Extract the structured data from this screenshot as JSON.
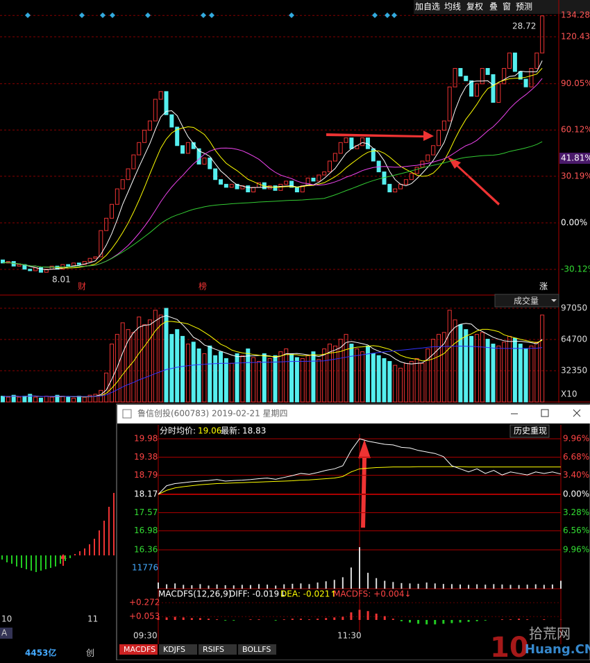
{
  "toolbar": [
    "加自选",
    "均线",
    "复权",
    "叠",
    "窗",
    "预测"
  ],
  "main_chart": {
    "yticks": [
      {
        "value": 134.28,
        "label": "134.28%"
      },
      {
        "value": 120.43,
        "label": "120.43%"
      },
      {
        "value": 90.05,
        "label": "90.05%"
      },
      {
        "value": 60.12,
        "label": "60.12%"
      },
      {
        "value": 30.19,
        "label": "30.19%"
      },
      {
        "value": 0,
        "label": "0.00%"
      },
      {
        "value": -30.12,
        "label": "-30.12%"
      }
    ],
    "current": {
      "value": 41.81,
      "label": "41.81%"
    },
    "price_high": "28.72",
    "price_low": "8.01",
    "markers": [
      "财",
      "榜",
      "涨"
    ],
    "candles": [
      [
        -24,
        -26
      ],
      [
        -26,
        -25
      ],
      [
        -25,
        -28
      ],
      [
        -28,
        -27
      ],
      [
        -27,
        -30
      ],
      [
        -30,
        -31
      ],
      [
        -31,
        -29
      ],
      [
        -29,
        -32
      ],
      [
        -32,
        -30
      ],
      [
        -30,
        -28
      ],
      [
        -28,
        -30
      ],
      [
        -30,
        -27
      ],
      [
        -27,
        -28
      ],
      [
        -28,
        -26
      ],
      [
        -26,
        -27
      ],
      [
        -27,
        -25
      ],
      [
        -25,
        -23
      ],
      [
        -23,
        -22
      ],
      [
        -22,
        -5
      ],
      [
        -5,
        3
      ],
      [
        3,
        12
      ],
      [
        12,
        22
      ],
      [
        22,
        28
      ],
      [
        28,
        35
      ],
      [
        35,
        44
      ],
      [
        44,
        52
      ],
      [
        52,
        60
      ],
      [
        60,
        66
      ],
      [
        66,
        80
      ],
      [
        80,
        85
      ],
      [
        85,
        70
      ],
      [
        70,
        62
      ],
      [
        62,
        50
      ],
      [
        50,
        45
      ],
      [
        45,
        52
      ],
      [
        52,
        48
      ],
      [
        48,
        38
      ],
      [
        38,
        42
      ],
      [
        42,
        35
      ],
      [
        35,
        28
      ],
      [
        28,
        25
      ],
      [
        25,
        23
      ],
      [
        23,
        25
      ],
      [
        25,
        22
      ],
      [
        22,
        24
      ],
      [
        24,
        20
      ],
      [
        20,
        23
      ],
      [
        23,
        26
      ],
      [
        26,
        22
      ],
      [
        22,
        24
      ],
      [
        24,
        21
      ],
      [
        21,
        25
      ],
      [
        25,
        27
      ],
      [
        27,
        23
      ],
      [
        23,
        20
      ],
      [
        20,
        24
      ],
      [
        24,
        29
      ],
      [
        29,
        27
      ],
      [
        27,
        31
      ],
      [
        31,
        33
      ],
      [
        33,
        40
      ],
      [
        40,
        45
      ],
      [
        45,
        52
      ],
      [
        52,
        55
      ],
      [
        55,
        48
      ],
      [
        48,
        50
      ],
      [
        50,
        55
      ],
      [
        55,
        48
      ],
      [
        48,
        40
      ],
      [
        40,
        33
      ],
      [
        33,
        25
      ],
      [
        25,
        20
      ],
      [
        20,
        22
      ],
      [
        22,
        25
      ],
      [
        25,
        28
      ],
      [
        28,
        32
      ],
      [
        32,
        36
      ],
      [
        36,
        40
      ],
      [
        40,
        44
      ],
      [
        44,
        50
      ],
      [
        50,
        60
      ],
      [
        60,
        66
      ],
      [
        66,
        88
      ],
      [
        88,
        100
      ],
      [
        100,
        95
      ],
      [
        95,
        92
      ],
      [
        92,
        82
      ],
      [
        82,
        90
      ],
      [
        90,
        100
      ],
      [
        100,
        96
      ],
      [
        96,
        78
      ],
      [
        78,
        90
      ],
      [
        90,
        100
      ],
      [
        100,
        110
      ],
      [
        110,
        98
      ],
      [
        98,
        93
      ],
      [
        93,
        88
      ],
      [
        88,
        100
      ],
      [
        100,
        110
      ],
      [
        110,
        134
      ]
    ]
  },
  "volume": {
    "title": "成交量",
    "yticks": [
      97050,
      64700,
      32350
    ],
    "unit": "X10",
    "values": [
      6000,
      5000,
      7000,
      5000,
      6000,
      8000,
      5000,
      4000,
      6000,
      5000,
      7000,
      6000,
      5000,
      4000,
      6000,
      5000,
      7000,
      8000,
      12000,
      30000,
      60000,
      70000,
      82000,
      75000,
      72000,
      88000,
      80000,
      85000,
      95000,
      90000,
      97000,
      70000,
      75000,
      68000,
      60000,
      62000,
      55000,
      50000,
      58000,
      48000,
      52000,
      45000,
      40000,
      50000,
      48000,
      55000,
      46000,
      42000,
      50000,
      45000,
      48000,
      52000,
      55000,
      50000,
      46000,
      45000,
      48000,
      52000,
      44000,
      55000,
      60000,
      58000,
      65000,
      70000,
      60000,
      55000,
      52000,
      58000,
      50000,
      48000,
      45000,
      42000,
      38000,
      35000,
      40000,
      42000,
      45000,
      40000,
      55000,
      65000,
      70000,
      72000,
      95000,
      85000,
      80000,
      75000,
      68000,
      70000,
      72000,
      65000,
      60000,
      58000,
      62000,
      68000,
      66000,
      60000,
      55000,
      58000,
      62000,
      90000
    ]
  },
  "left_panel": {
    "x_labels": [
      "10",
      "11"
    ],
    "badge": "A",
    "amount": "4453亿",
    "tag": "创",
    "bars": [
      -3,
      -5,
      -6,
      -8,
      -9,
      -10,
      -11,
      -12,
      -11,
      -10,
      -9,
      -8,
      -6,
      -4,
      -2,
      1,
      3,
      5,
      8,
      12,
      18,
      25,
      35,
      45
    ]
  },
  "window": {
    "title": "鲁信创投(600783) 2019-02-21 星期四",
    "header": [
      "分时",
      "均价:",
      "19.06",
      "最新:",
      "18.83"
    ],
    "button": "历史重现",
    "price_ticks": [
      19.98,
      19.38,
      18.79,
      18.17,
      17.57,
      16.98,
      16.36
    ],
    "pct_labels": [
      "9.96%",
      "6.68%",
      "3.40%",
      "0.00%",
      "3.28%",
      "6.56%",
      "9.96%"
    ],
    "price": [
      18.17,
      18.45,
      18.52,
      18.55,
      18.58,
      18.6,
      18.62,
      18.65,
      18.6,
      18.62,
      18.63,
      18.65,
      18.68,
      18.7,
      18.66,
      18.72,
      18.78,
      18.85,
      18.82,
      18.88,
      18.95,
      19.0,
      19.1,
      19.6,
      19.98,
      19.9,
      19.85,
      19.8,
      19.78,
      19.7,
      19.68,
      19.6,
      19.55,
      19.5,
      19.4,
      19.1,
      19.0,
      18.9,
      19.0,
      18.85,
      18.95,
      18.8,
      18.9,
      18.85,
      18.8,
      18.9,
      18.85,
      18.9,
      18.83
    ],
    "avg": [
      18.17,
      18.3,
      18.38,
      18.42,
      18.45,
      18.48,
      18.5,
      18.52,
      18.53,
      18.54,
      18.55,
      18.56,
      18.57,
      18.58,
      18.59,
      18.6,
      18.61,
      18.63,
      18.64,
      18.66,
      18.68,
      18.7,
      18.75,
      18.9,
      19.0,
      19.02,
      19.04,
      19.05,
      19.06,
      19.06,
      19.06,
      19.07,
      19.07,
      19.07,
      19.07,
      19.07,
      19.07,
      19.06,
      19.06,
      19.06,
      19.06,
      19.06,
      19.06,
      19.06,
      19.06,
      19.06,
      19.06,
      19.06,
      19.06
    ],
    "vol_tick": 11776,
    "volume": [
      3500,
      2500,
      3000,
      2200,
      2000,
      2600,
      1800,
      2400,
      2000,
      1900,
      2200,
      2100,
      2600,
      2300,
      1800,
      2500,
      2800,
      3000,
      2600,
      3500,
      4200,
      5000,
      6500,
      12000,
      23500,
      9000,
      6000,
      4500,
      3800,
      3200,
      3000,
      2800,
      3500,
      3000,
      2700,
      2600,
      2400,
      2200,
      2500,
      2300,
      2600,
      2400,
      2200,
      2100,
      2300,
      2500,
      2200,
      2400,
      4500
    ],
    "macd_header": [
      "MACDFS(12,26,9)",
      "DIFF: -0.019↓",
      "DEA: -0.021↑",
      "MACDFS: +0.004↓"
    ],
    "macd_ticks": [
      {
        "value": 0.272,
        "label": "+0.272"
      },
      {
        "value": 0.053,
        "label": "+0.053"
      }
    ],
    "macd": [
      0.03,
      0.04,
      0.05,
      0.04,
      0.03,
      0.03,
      0.02,
      0.01,
      -0.01,
      -0.01,
      0.0,
      0.01,
      0.01,
      0.0,
      -0.01,
      0.01,
      0.02,
      0.02,
      0.01,
      0.02,
      0.03,
      0.04,
      0.05,
      0.12,
      0.16,
      0.14,
      0.1,
      0.06,
      0.02,
      -0.02,
      -0.04,
      -0.06,
      -0.07,
      -0.07,
      -0.06,
      -0.05,
      -0.04,
      -0.03,
      -0.02,
      -0.01,
      0.0,
      0.01,
      0.01,
      0.02,
      0.01,
      0.0,
      0.01,
      0.0,
      0.004
    ],
    "times": [
      "09:30",
      "11:30"
    ],
    "tabs": [
      "MACDFS",
      "KDJFS",
      "RSIFS",
      "BOLLFS"
    ]
  },
  "watermark": [
    "10",
    "拾荒网",
    "Huang.CN"
  ]
}
